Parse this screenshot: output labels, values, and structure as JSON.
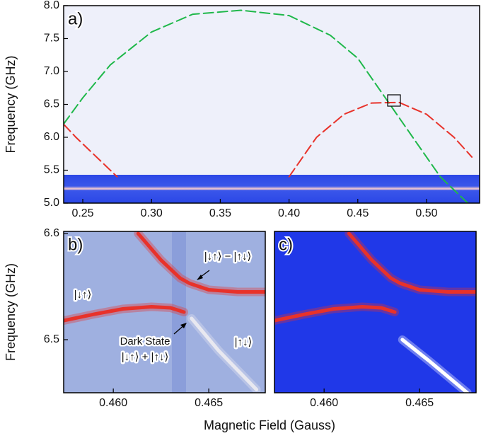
{
  "chart_data": [
    {
      "type": "line",
      "title": "a)",
      "ylabel": "Frequency (GHz)",
      "xlim": [
        0.2361,
        0.5386
      ],
      "ylim": [
        5.0,
        8.0
      ],
      "xticks": [
        0.25,
        {
          "value": 0.3,
          "label": "0.30"
        },
        0.35,
        {
          "value": 0.4,
          "label": "0.40"
        },
        0.45,
        {
          "value": 0.5,
          "label": "0.50"
        }
      ],
      "yticks": [
        {
          "value": 5,
          "label": "5.0"
        },
        5.5,
        {
          "value": 6,
          "label": "6.0"
        },
        6.5,
        {
          "value": 7,
          "label": "7.0"
        },
        7.5,
        {
          "value": 8,
          "label": "8.0"
        }
      ],
      "dashed": true,
      "series": [
        {
          "color": "#1fb84a",
          "x": [
            0.236,
            0.25,
            0.27,
            0.3,
            0.33,
            0.365,
            0.4,
            0.43,
            0.45,
            0.47,
            0.49,
            0.51
          ],
          "values": [
            6.2,
            6.6,
            7.1,
            7.6,
            7.87,
            7.93,
            7.85,
            7.55,
            7.2,
            6.6,
            6.0,
            5.4
          ]
        },
        {
          "color": "#e8322a",
          "x": [
            0.236,
            0.245,
            0.255,
            0.265,
            0.275
          ],
          "values": [
            6.2,
            6.0,
            5.8,
            5.6,
            5.4
          ]
        },
        {
          "color": "#e8322a",
          "x": [
            0.4,
            0.42,
            0.44,
            0.46,
            0.48,
            0.5,
            0.52,
            0.533
          ],
          "values": [
            5.4,
            6.0,
            6.35,
            6.52,
            6.53,
            6.35,
            6.0,
            5.7
          ]
        },
        {
          "color": "#1fb84a",
          "x": [
            0.51,
            0.52,
            0.53
          ],
          "values": [
            5.4,
            5.2,
            5.0
          ]
        }
      ]
    },
    {
      "type": "line",
      "title": "b)",
      "ylabel": "Frequency (GHz)",
      "xlabel": "Magnetic Field (Gauss)",
      "xlim": [
        0.4574,
        0.46796
      ],
      "ylim": [
        6.45,
        6.602
      ],
      "xticks": [
        {
          "value": 0.46,
          "label": "0.460"
        },
        0.465
      ],
      "yticks": [
        6.5,
        6.6
      ],
      "dashed": false,
      "series": [
        {
          "color": "#e8322a",
          "x": [
            0.4613,
            0.4625,
            0.4635,
            0.464,
            0.465,
            0.4665,
            0.468
          ],
          "values": [
            6.6,
            6.575,
            6.558,
            6.553,
            6.547,
            6.545,
            6.545
          ]
        },
        {
          "color": "#e8322a",
          "x": [
            0.4574,
            0.459,
            0.4605,
            0.462,
            0.463,
            0.4637
          ],
          "values": [
            6.518,
            6.524,
            6.529,
            6.531,
            6.53,
            6.526
          ]
        },
        {
          "color": "#e8e8f0",
          "x": [
            0.4641,
            0.4655,
            0.4675
          ],
          "values": [
            6.52,
            6.49,
            6.453
          ]
        }
      ],
      "annotations": [
        "|↓↑⟩ − |↑↓⟩",
        "|↓↑⟩",
        "Dark State",
        "|↓↑⟩ + |↑↓⟩",
        "|↑↓⟩"
      ]
    },
    {
      "type": "line",
      "title": "c)",
      "xlim": [
        0.4574,
        0.46796
      ],
      "ylim": [
        6.45,
        6.602
      ],
      "xticks": [
        {
          "value": 0.46,
          "label": "0.460"
        },
        0.465
      ],
      "dashed": false,
      "series": [
        {
          "color": "#e8322a",
          "x": [
            0.4613,
            0.4625,
            0.4635,
            0.464,
            0.465,
            0.4665,
            0.468
          ],
          "values": [
            6.6,
            6.575,
            6.558,
            6.553,
            6.547,
            6.545,
            6.545
          ]
        },
        {
          "color": "#e8322a",
          "x": [
            0.4574,
            0.459,
            0.4605,
            0.462,
            0.463,
            0.4637
          ],
          "values": [
            6.518,
            6.524,
            6.529,
            6.531,
            6.53,
            6.526
          ]
        },
        {
          "color": "#ffffff",
          "x": [
            0.4641,
            0.4655,
            0.4675
          ],
          "values": [
            6.5,
            6.48,
            6.45
          ]
        }
      ]
    }
  ]
}
